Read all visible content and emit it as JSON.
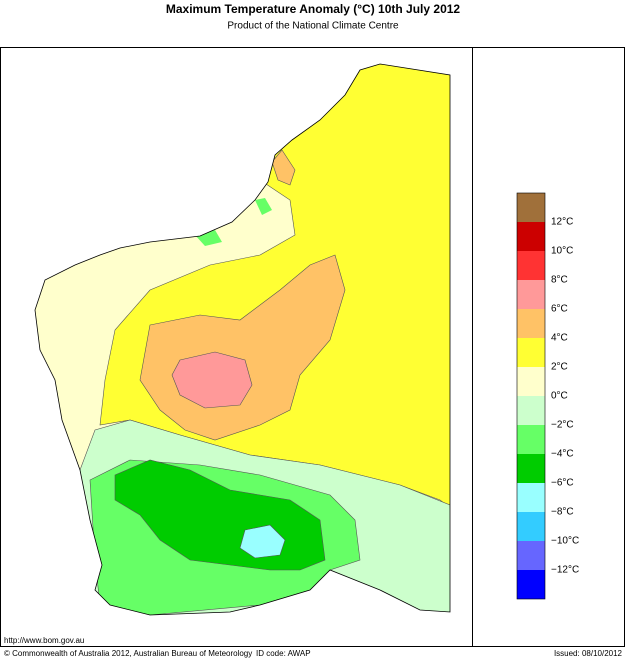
{
  "header": {
    "title": "Maximum Temperature Anomaly (°C)  10th July 2012",
    "subtitle": "Product of the National Climate Centre"
  },
  "legend": {
    "labels": [
      "12°C",
      "10°C",
      "8°C",
      "6°C",
      "4°C",
      "2°C",
      "0°C",
      "−2°C",
      "−4°C",
      "−6°C",
      "−8°C",
      "−10°C",
      "−12°C"
    ],
    "colors": [
      "#a0703a",
      "#cc0000",
      "#ff3333",
      "#ff9999",
      "#ffc266",
      "#ffff33",
      "#ffffcc",
      "#ccffcc",
      "#66ff66",
      "#00cc00",
      "#99ffff",
      "#33ccff",
      "#6666ff",
      "#0000ff"
    ]
  },
  "footer": {
    "url": "http://www.bom.gov.au",
    "copyright": "© Commonwealth of Australia 2012, Australian Bureau of Meteorology",
    "id_code": "ID code: AWAP",
    "issued": "Issued: 08/10/2012"
  }
}
